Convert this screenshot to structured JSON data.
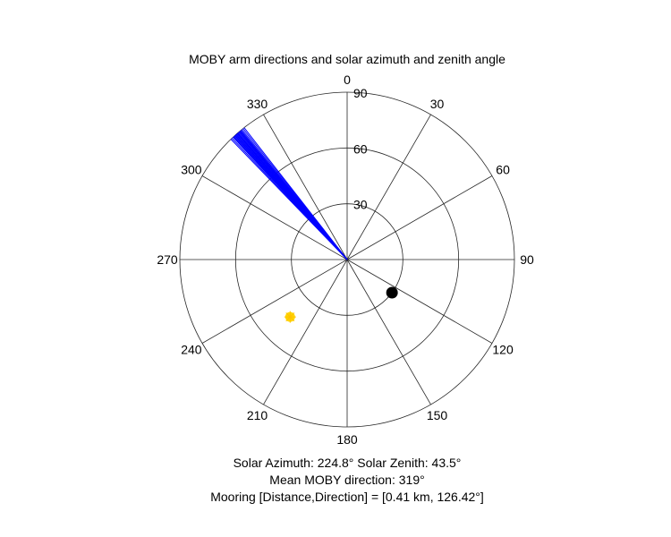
{
  "chart_data": {
    "type": "polar",
    "title": "MOBY arm directions and solar azimuth and zenith angle",
    "angular_axis": {
      "orientation": "clockwise",
      "zero_direction": "top",
      "tick_labels": [
        "0",
        "30",
        "60",
        "90",
        "120",
        "150",
        "180",
        "210",
        "240",
        "270",
        "300",
        "330"
      ]
    },
    "radial_axis": {
      "range": [
        0,
        90
      ],
      "ticks": [
        30,
        60,
        90
      ],
      "tick_labels": [
        "30",
        "60",
        "90"
      ],
      "label_angle": 0
    },
    "grid": true,
    "series": [
      {
        "marker": "lines",
        "color": "#0000ff",
        "azimuths_deg": [
          316.0,
          316.5,
          317.0,
          317.2,
          317.5,
          317.8,
          318.0,
          318.3,
          318.5,
          318.8,
          319.0,
          319.2,
          319.5,
          319.8,
          320.0,
          320.3,
          320.6,
          321.0,
          321.5,
          322.0
        ],
        "length": 90
      },
      {
        "marker": "sun",
        "color": "#ffd700",
        "azimuth_deg": 224.8,
        "zenith_deg": 43.5
      },
      {
        "marker": "filled-circle",
        "color": "#000000",
        "azimuth_deg": 126.42,
        "radius": 30
      }
    ],
    "annotations": {
      "solar_line": "Solar Azimuth: 224.8°    Solar Zenith: 43.5°",
      "moby_line": "Mean MOBY direction: 319°",
      "mooring_line": "Mooring [Distance,Direction] = [0.41 km, 126.42°]"
    }
  }
}
